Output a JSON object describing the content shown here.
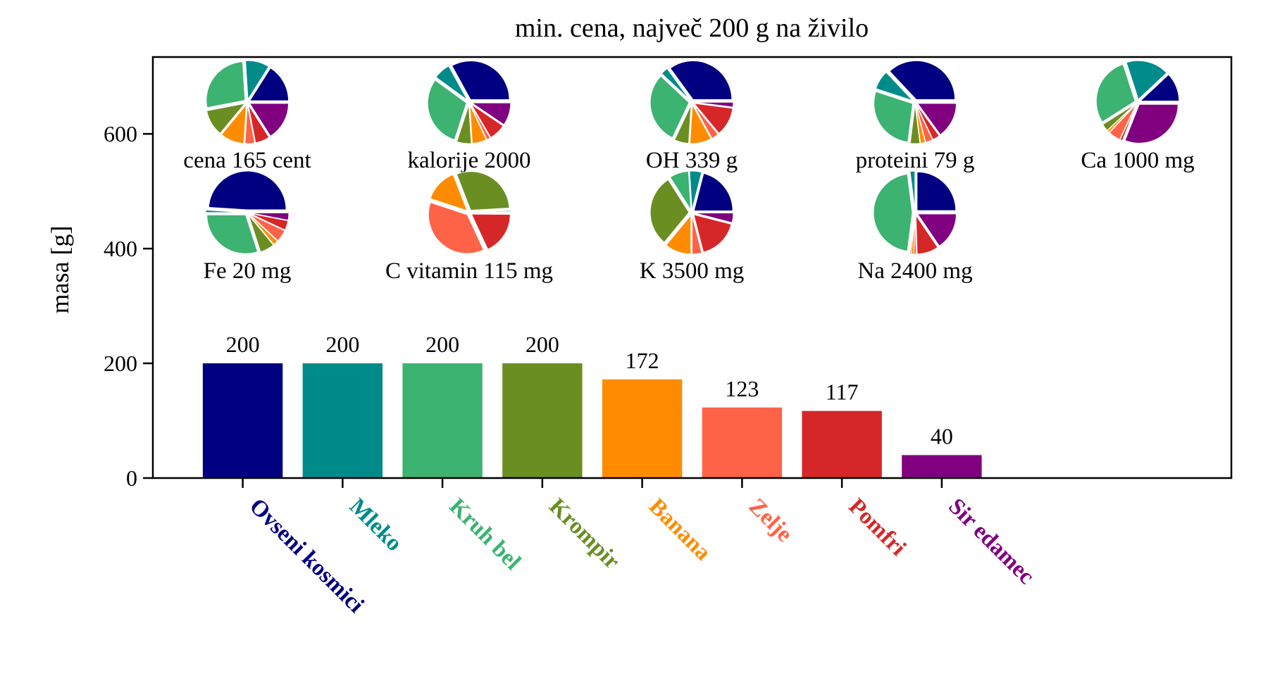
{
  "chart_data": {
    "type": "bar",
    "title": "min. cena, največ 200 g na živilo",
    "xlabel": "",
    "ylabel": "masa [g]",
    "ylim": [
      0,
      734
    ],
    "xlim": [
      -0.9,
      9.9
    ],
    "yticks": [
      0,
      200,
      400,
      600
    ],
    "grid": false,
    "categories": [
      "Ovseni kosmici",
      "Mleko",
      "Kruh bel",
      "Krompir",
      "Banana",
      "Zelje",
      "Pomfri",
      "Sir edamec"
    ],
    "values": [
      200,
      200,
      200,
      200,
      172,
      123,
      117,
      40
    ],
    "colors": [
      "#000080",
      "#008B8B",
      "#3CB371",
      "#6B8E23",
      "#FF8C00",
      "#FF6347",
      "#D62728",
      "#800080"
    ],
    "inset_pies": [
      {
        "label": "cena 165 cent",
        "shares": [
          16,
          10,
          27,
          11,
          10,
          4,
          6,
          16
        ]
      },
      {
        "label": "kalorije 2000",
        "shares": [
          33,
          7,
          30,
          6,
          6,
          1.5,
          7,
          9.5
        ]
      },
      {
        "label": "OH 339 g",
        "shares": [
          35,
          3,
          30,
          6,
          9,
          3,
          12,
          2
        ]
      },
      {
        "label": "proteini 79 g",
        "shares": [
          37,
          8,
          28,
          4,
          2,
          3,
          3,
          15
        ]
      },
      {
        "label": "Ca 1000 mg",
        "shares": [
          12,
          18,
          29,
          3,
          1,
          5,
          1,
          31
        ]
      },
      {
        "label": "Fe 20 mg",
        "shares": [
          49,
          1,
          30,
          6,
          2,
          5,
          4,
          3
        ]
      },
      {
        "label": "C vitamin 115 mg",
        "shares": [
          0.2,
          0.2,
          0.5,
          30,
          14,
          37,
          18,
          0.1
        ]
      },
      {
        "label": "K 3500 mg",
        "shares": [
          21,
          5,
          8,
          30,
          11,
          4,
          17,
          4
        ]
      },
      {
        "label": "Na 2400 mg",
        "shares": [
          25,
          2,
          46,
          0.5,
          1,
          1,
          9,
          15.5
        ]
      }
    ]
  }
}
